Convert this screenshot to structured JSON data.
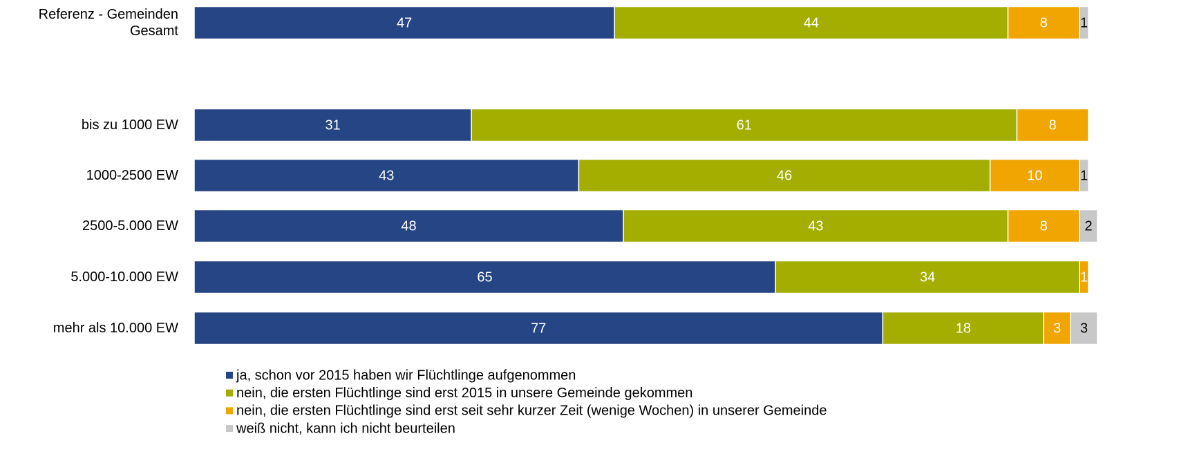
{
  "chart_data": {
    "type": "stacked-bar-horizontal",
    "categories": [
      "Referenz - Gemeinden Gesamt",
      "bis zu 1000 EW",
      "1000-2500 EW",
      "2500-5.000 EW",
      "5.000-10.000 EW",
      "mehr als 10.000 EW"
    ],
    "series": [
      {
        "name": "ja, schon vor 2015 haben wir Flüchtlinge aufgenommen",
        "color": "#264584",
        "values": [
          47,
          31,
          43,
          48,
          65,
          77
        ]
      },
      {
        "name": "nein, die ersten Flüchtlinge sind erst 2015 in unsere Gemeinde gekommen",
        "color": "#a3ae00",
        "values": [
          44,
          61,
          46,
          43,
          34,
          18
        ]
      },
      {
        "name": "nein, die ersten Flüchtlinge sind erst seit sehr kurzer Zeit (wenige Wochen) in unserer Gemeinde",
        "color": "#f0a500",
        "values": [
          8,
          8,
          10,
          8,
          1,
          3
        ]
      },
      {
        "name": "weiß nicht, kann ich nicht beurteilen",
        "color": "#c8c8c8",
        "values": [
          1,
          null,
          1,
          2,
          null,
          3
        ]
      }
    ],
    "xlim": [
      0,
      100
    ],
    "legend": "bottom"
  }
}
